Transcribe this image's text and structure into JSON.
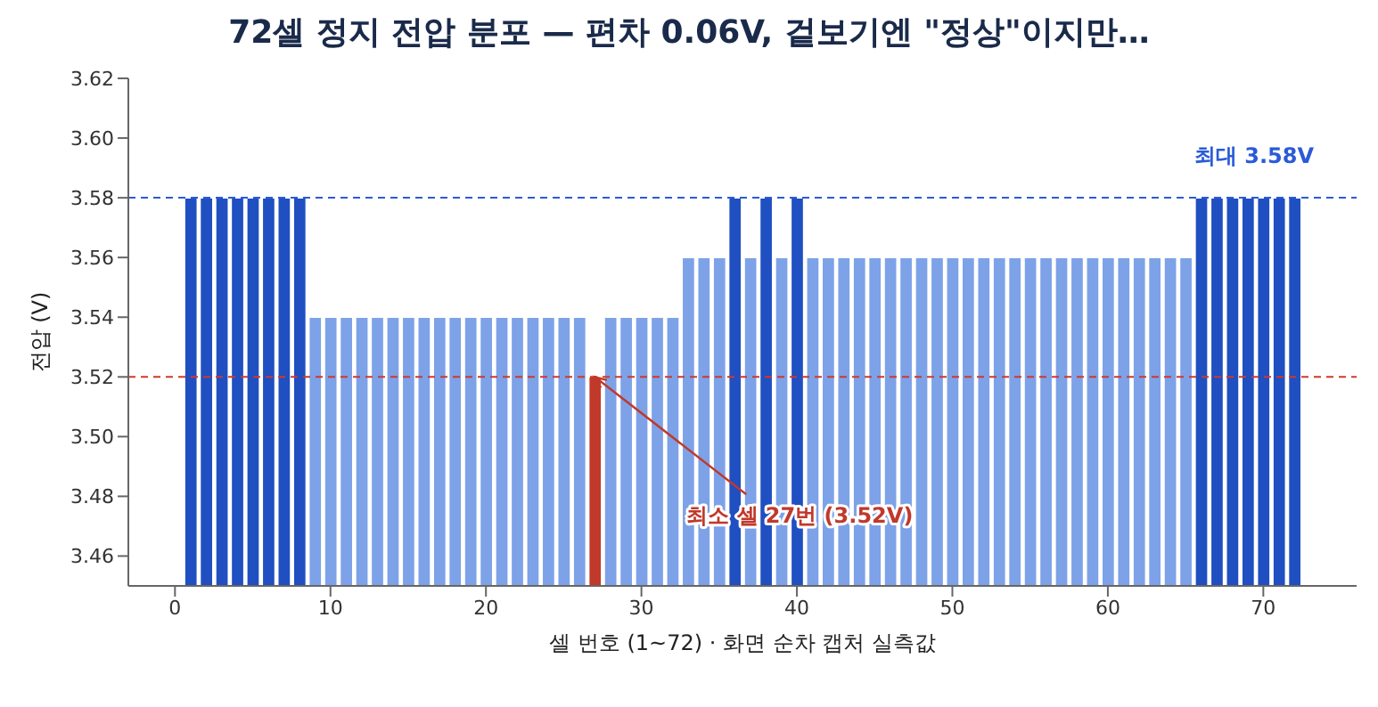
{
  "chart_data": {
    "type": "bar",
    "title": "72셀 정지 전압 분포 — 편차 0.06V, 겉보기엔 \"정상\"이지만…",
    "xlabel": "셀 번호 (1~72) · 화면 순차 캡처 실측값",
    "ylabel": "전압 (V)",
    "x": [
      1,
      2,
      3,
      4,
      5,
      6,
      7,
      8,
      9,
      10,
      11,
      12,
      13,
      14,
      15,
      16,
      17,
      18,
      19,
      20,
      21,
      22,
      23,
      24,
      25,
      26,
      27,
      28,
      29,
      30,
      31,
      32,
      33,
      34,
      35,
      36,
      37,
      38,
      39,
      40,
      41,
      42,
      43,
      44,
      45,
      46,
      47,
      48,
      49,
      50,
      51,
      52,
      53,
      54,
      55,
      56,
      57,
      58,
      59,
      60,
      61,
      62,
      63,
      64,
      65,
      66,
      67,
      68,
      69,
      70,
      71,
      72
    ],
    "values": [
      3.58,
      3.58,
      3.58,
      3.58,
      3.58,
      3.58,
      3.58,
      3.58,
      3.54,
      3.54,
      3.54,
      3.54,
      3.54,
      3.54,
      3.54,
      3.54,
      3.54,
      3.54,
      3.54,
      3.54,
      3.54,
      3.54,
      3.54,
      3.54,
      3.54,
      3.54,
      3.52,
      3.54,
      3.54,
      3.54,
      3.54,
      3.54,
      3.56,
      3.56,
      3.56,
      3.58,
      3.56,
      3.58,
      3.56,
      3.58,
      3.56,
      3.56,
      3.56,
      3.56,
      3.56,
      3.56,
      3.56,
      3.56,
      3.56,
      3.56,
      3.56,
      3.56,
      3.56,
      3.56,
      3.56,
      3.56,
      3.56,
      3.56,
      3.56,
      3.56,
      3.56,
      3.56,
      3.56,
      3.56,
      3.56,
      3.58,
      3.58,
      3.58,
      3.58,
      3.58,
      3.58,
      3.58
    ],
    "colors": [
      "#1f4fc1",
      "#1f4fc1",
      "#1f4fc1",
      "#1f4fc1",
      "#1f4fc1",
      "#1f4fc1",
      "#1f4fc1",
      "#1f4fc1",
      "#7da2e8",
      "#7da2e8",
      "#7da2e8",
      "#7da2e8",
      "#7da2e8",
      "#7da2e8",
      "#7da2e8",
      "#7da2e8",
      "#7da2e8",
      "#7da2e8",
      "#7da2e8",
      "#7da2e8",
      "#7da2e8",
      "#7da2e8",
      "#7da2e8",
      "#7da2e8",
      "#7da2e8",
      "#7da2e8",
      "#c0392b",
      "#7da2e8",
      "#7da2e8",
      "#7da2e8",
      "#7da2e8",
      "#7da2e8",
      "#7da2e8",
      "#7da2e8",
      "#7da2e8",
      "#1f4fc1",
      "#7da2e8",
      "#1f4fc1",
      "#7da2e8",
      "#1f4fc1",
      "#7da2e8",
      "#7da2e8",
      "#7da2e8",
      "#7da2e8",
      "#7da2e8",
      "#7da2e8",
      "#7da2e8",
      "#7da2e8",
      "#7da2e8",
      "#7da2e8",
      "#7da2e8",
      "#7da2e8",
      "#7da2e8",
      "#7da2e8",
      "#7da2e8",
      "#7da2e8",
      "#7da2e8",
      "#7da2e8",
      "#7da2e8",
      "#7da2e8",
      "#7da2e8",
      "#7da2e8",
      "#7da2e8",
      "#7da2e8",
      "#7da2e8",
      "#1f4fc1",
      "#1f4fc1",
      "#1f4fc1",
      "#1f4fc1",
      "#1f4fc1",
      "#1f4fc1",
      "#1f4fc1"
    ],
    "xlim": [
      -3,
      76
    ],
    "xticks": [
      0,
      10,
      20,
      30,
      40,
      50,
      60,
      70
    ],
    "ylim": [
      3.45,
      3.62
    ],
    "yticks": [
      3.46,
      3.48,
      {
        "value": 3.5,
        "label": "3.50"
      },
      3.52,
      3.54,
      3.56,
      3.58,
      {
        "value": 3.6,
        "label": "3.60"
      },
      3.62
    ],
    "ref_lines": [
      {
        "axis": "y",
        "value": 3.58,
        "label": "최대 3.58V",
        "color": "#2a5bd7",
        "line_style": "dashed"
      },
      {
        "axis": "y",
        "value": 3.52,
        "label": null,
        "color": "#d0392b",
        "line_style": "dashed"
      }
    ],
    "annotations": [
      {
        "text": "최소 셀 27번 (3.52V)",
        "x": 27,
        "y": 3.52
      }
    ],
    "grid": false,
    "legend": false
  }
}
